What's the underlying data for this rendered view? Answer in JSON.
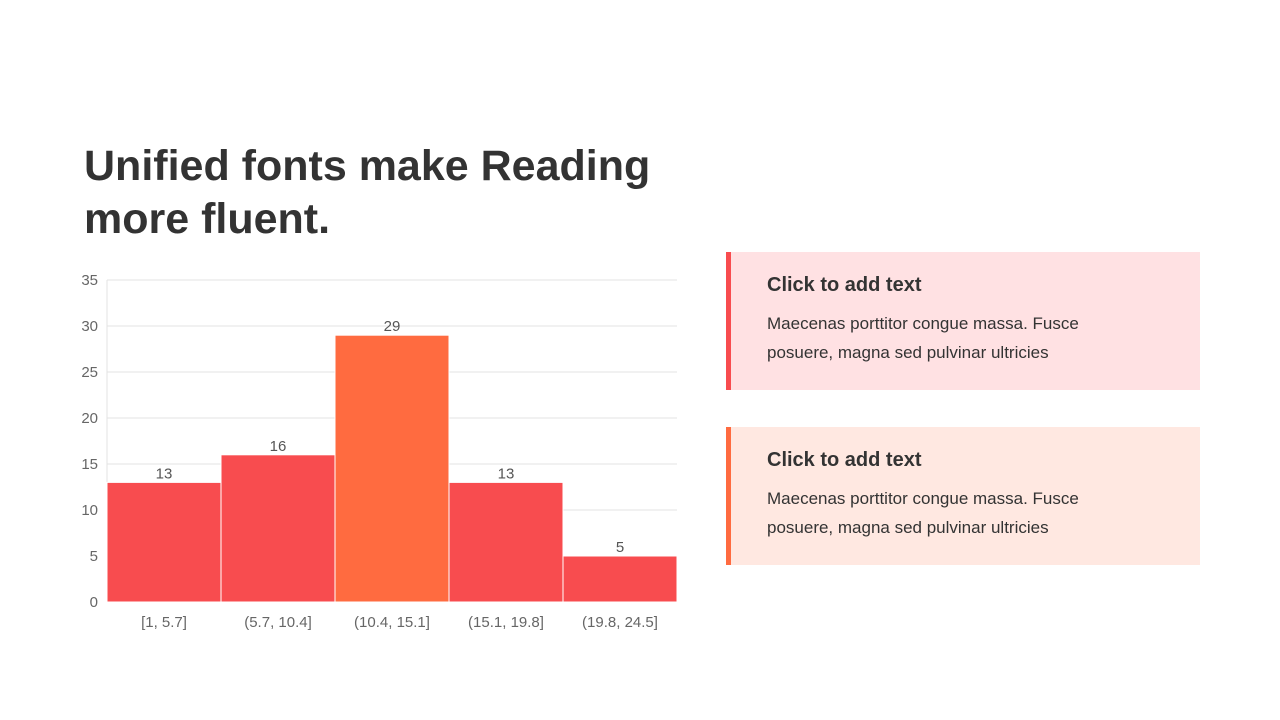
{
  "slide": {
    "title": "Unified fonts make Reading more fluent."
  },
  "cards": [
    {
      "heading": "Click to add text",
      "body": "Maecenas porttitor congue massa. Fusce posuere, magna sed pulvinar ultricies",
      "accent": "#f84c4f"
    },
    {
      "heading": "Click to add text",
      "body": "Maecenas porttitor congue massa. Fusce posuere, magna sed pulvinar ultricies",
      "accent": "#ff6b40"
    }
  ],
  "chart_data": {
    "type": "bar",
    "categories": [
      "[1, 5.7]",
      "(5.7, 10.4]",
      "(10.4, 15.1]",
      "(15.1, 19.8]",
      "(19.8, 24.5]"
    ],
    "values": [
      13,
      16,
      29,
      13,
      5
    ],
    "ylim": [
      0,
      35
    ],
    "yticks": [
      0,
      5,
      10,
      15,
      20,
      25,
      30,
      35
    ],
    "grid": true,
    "colors": [
      "#f84c4f",
      "#f84c4f",
      "#ff6b40",
      "#f84c4f",
      "#f84c4f"
    ],
    "data_labels": true
  }
}
